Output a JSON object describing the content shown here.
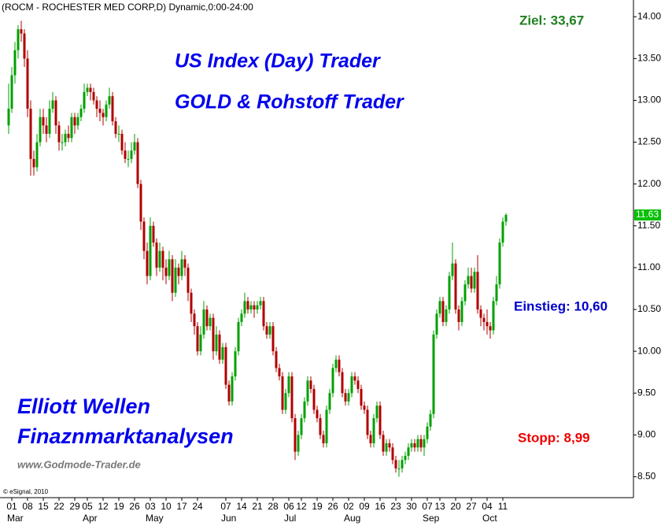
{
  "chart_data": {
    "type": "candlestick",
    "title": "(ROCM - ROCHESTER MED CORP,D) Dynamic,0:00-24:00",
    "copyright": "© eSignal, 2010",
    "annotations": {
      "target": "Ziel: 33,67",
      "headline1": "US Index (Day) Trader",
      "headline2": "GOLD & Rohstoff Trader",
      "entry": "Einstieg: 10,60",
      "stop": "Stopp: 8,99",
      "brand1": "Elliott Wellen",
      "brand2": "Finaznmarktanalysen",
      "url": "www.Godmode-Trader.de"
    },
    "up_color": "#00a000",
    "down_color": "#b00000",
    "last_price": {
      "value": 11.63,
      "label": "11.63"
    },
    "last_color": "#00c000",
    "ylim": [
      8.25,
      14.2
    ],
    "yticks": [
      {
        "value": 8.5,
        "label": "8.50"
      },
      {
        "value": 9,
        "label": "9.00"
      },
      {
        "value": 9.5,
        "label": "9.50"
      },
      {
        "value": 10,
        "label": "10.00"
      },
      {
        "value": 10.5,
        "label": "10.50"
      },
      {
        "value": 11,
        "label": "11.00"
      },
      {
        "value": 11.5,
        "label": "11.50"
      },
      {
        "value": 12,
        "label": "12.00"
      },
      {
        "value": 12.5,
        "label": "12.50"
      },
      {
        "value": 13,
        "label": "13.00"
      },
      {
        "value": 13.5,
        "label": "13.50"
      },
      {
        "value": 14,
        "label": "14.00"
      }
    ],
    "months": [
      "Mar",
      "Apr",
      "May",
      "Jun",
      "Jul",
      "Aug",
      "Sep",
      "Oct"
    ],
    "categories": [
      null,
      "01",
      null,
      null,
      null,
      null,
      "08",
      null,
      null,
      null,
      null,
      "15",
      null,
      null,
      null,
      null,
      "22",
      null,
      null,
      null,
      null,
      "29",
      null,
      null,
      null,
      "05",
      null,
      null,
      null,
      null,
      "12",
      null,
      null,
      null,
      null,
      "19",
      null,
      null,
      null,
      null,
      "26",
      null,
      null,
      null,
      null,
      "03",
      null,
      null,
      null,
      null,
      "10",
      null,
      null,
      null,
      null,
      "17",
      null,
      null,
      null,
      null,
      "24",
      null,
      null,
      null,
      null,
      null,
      null,
      null,
      null,
      "07",
      null,
      null,
      null,
      null,
      "14",
      null,
      null,
      null,
      null,
      "21",
      null,
      null,
      null,
      null,
      "28",
      null,
      null,
      null,
      null,
      "06",
      null,
      null,
      null,
      "12",
      null,
      null,
      null,
      null,
      "19",
      null,
      null,
      null,
      null,
      "26",
      null,
      null,
      null,
      null,
      "02",
      null,
      null,
      null,
      null,
      "09",
      null,
      null,
      null,
      null,
      "16",
      null,
      null,
      null,
      null,
      "23",
      null,
      null,
      null,
      null,
      "30",
      null,
      null,
      null,
      null,
      "07",
      null,
      null,
      null,
      "13",
      null,
      null,
      null,
      null,
      "20",
      null,
      null,
      null,
      null,
      "27",
      null,
      null,
      null,
      null,
      "04",
      null,
      null,
      null,
      null,
      "11",
      null
    ],
    "ohlc": [
      [
        12.7,
        13.2,
        12.6,
        12.9
      ],
      [
        12.9,
        13.4,
        12.85,
        13.3
      ],
      [
        13.3,
        13.7,
        13.2,
        13.6
      ],
      [
        13.6,
        13.9,
        13.5,
        13.85
      ],
      [
        13.85,
        13.95,
        13.7,
        13.8
      ],
      [
        13.8,
        13.85,
        13.4,
        13.5
      ],
      [
        13.5,
        13.6,
        12.8,
        12.9
      ],
      [
        12.9,
        13.0,
        12.1,
        12.3
      ],
      [
        12.3,
        12.4,
        12.1,
        12.2
      ],
      [
        12.2,
        12.6,
        12.15,
        12.5
      ],
      [
        12.5,
        12.9,
        12.45,
        12.8
      ],
      [
        12.8,
        12.9,
        12.6,
        12.7
      ],
      [
        12.7,
        12.8,
        12.5,
        12.6
      ],
      [
        12.6,
        13.0,
        12.55,
        12.9
      ],
      [
        12.9,
        13.1,
        12.85,
        13.0
      ],
      [
        13.0,
        13.05,
        12.6,
        12.7
      ],
      [
        12.7,
        12.75,
        12.4,
        12.5
      ],
      [
        12.5,
        12.6,
        12.4,
        12.5
      ],
      [
        12.5,
        12.65,
        12.45,
        12.6
      ],
      [
        12.6,
        12.7,
        12.5,
        12.55
      ],
      [
        12.55,
        12.85,
        12.5,
        12.8
      ],
      [
        12.8,
        12.85,
        12.6,
        12.7
      ],
      [
        12.7,
        12.85,
        12.65,
        12.8
      ],
      [
        12.8,
        12.95,
        12.75,
        12.9
      ],
      [
        12.9,
        13.2,
        12.85,
        13.1
      ],
      [
        13.1,
        13.2,
        13.05,
        13.15
      ],
      [
        13.15,
        13.2,
        13.0,
        13.1
      ],
      [
        13.1,
        13.15,
        12.95,
        13.0
      ],
      [
        13.0,
        13.05,
        12.8,
        12.9
      ],
      [
        12.9,
        13.0,
        12.75,
        12.85
      ],
      [
        12.85,
        12.9,
        12.7,
        12.8
      ],
      [
        12.8,
        13.0,
        12.75,
        12.95
      ],
      [
        12.95,
        13.15,
        12.9,
        13.05
      ],
      [
        13.05,
        13.1,
        12.7,
        12.75
      ],
      [
        12.75,
        12.8,
        12.55,
        12.6
      ],
      [
        12.6,
        12.7,
        12.5,
        12.6
      ],
      [
        12.6,
        12.65,
        12.35,
        12.4
      ],
      [
        12.4,
        12.5,
        12.25,
        12.3
      ],
      [
        12.3,
        12.4,
        12.2,
        12.3
      ],
      [
        12.3,
        12.5,
        12.25,
        12.4
      ],
      [
        12.4,
        12.6,
        12.35,
        12.5
      ],
      [
        12.5,
        12.55,
        11.95,
        12.0
      ],
      [
        12.0,
        12.05,
        11.45,
        11.55
      ],
      [
        11.55,
        11.6,
        11.1,
        11.2
      ],
      [
        11.2,
        11.3,
        10.8,
        10.9
      ],
      [
        10.9,
        11.6,
        10.85,
        11.5
      ],
      [
        11.5,
        11.55,
        11.25,
        11.3
      ],
      [
        11.3,
        11.35,
        10.9,
        11.0
      ],
      [
        11.0,
        11.3,
        10.95,
        11.2
      ],
      [
        11.2,
        11.25,
        10.85,
        11.0
      ],
      [
        11.0,
        11.1,
        10.8,
        10.9
      ],
      [
        10.9,
        11.2,
        10.85,
        11.1
      ],
      [
        11.1,
        11.15,
        10.6,
        10.7
      ],
      [
        10.7,
        11.1,
        10.65,
        11.0
      ],
      [
        11.0,
        11.05,
        10.8,
        10.9
      ],
      [
        10.9,
        11.2,
        10.85,
        11.1
      ],
      [
        11.1,
        11.15,
        10.9,
        11.0
      ],
      [
        11.0,
        11.05,
        10.6,
        10.7
      ],
      [
        10.7,
        10.75,
        10.35,
        10.45
      ],
      [
        10.45,
        10.5,
        10.2,
        10.3
      ],
      [
        10.3,
        10.35,
        9.95,
        10.0
      ],
      [
        10.0,
        10.3,
        9.95,
        10.2
      ],
      [
        10.2,
        10.6,
        10.15,
        10.5
      ],
      [
        10.5,
        10.55,
        10.25,
        10.3
      ],
      [
        10.3,
        10.45,
        10.25,
        10.4
      ],
      [
        10.4,
        10.45,
        9.9,
        10.0
      ],
      [
        10.0,
        10.3,
        9.95,
        10.2
      ],
      [
        10.2,
        10.25,
        9.85,
        9.9
      ],
      [
        9.9,
        10.1,
        9.85,
        10.05
      ],
      [
        10.05,
        10.1,
        9.55,
        9.6
      ],
      [
        9.6,
        9.65,
        9.35,
        9.4
      ],
      [
        9.4,
        9.75,
        9.35,
        9.7
      ],
      [
        9.7,
        10.05,
        9.65,
        10.0
      ],
      [
        10.0,
        10.4,
        9.95,
        10.35
      ],
      [
        10.35,
        10.5,
        10.3,
        10.45
      ],
      [
        10.45,
        10.7,
        10.4,
        10.6
      ],
      [
        10.6,
        10.65,
        10.45,
        10.5
      ],
      [
        10.5,
        10.6,
        10.45,
        10.55
      ],
      [
        10.55,
        10.6,
        10.4,
        10.5
      ],
      [
        10.5,
        10.6,
        10.45,
        10.55
      ],
      [
        10.55,
        10.65,
        10.5,
        10.6
      ],
      [
        10.6,
        10.65,
        10.25,
        10.3
      ],
      [
        10.3,
        10.35,
        10.15,
        10.2
      ],
      [
        10.2,
        10.35,
        10.15,
        10.3
      ],
      [
        10.3,
        10.35,
        9.95,
        10.0
      ],
      [
        10.0,
        10.05,
        9.75,
        9.8
      ],
      [
        9.8,
        9.85,
        9.65,
        9.7
      ],
      [
        9.7,
        9.75,
        9.25,
        9.3
      ],
      [
        9.3,
        9.55,
        9.25,
        9.5
      ],
      [
        9.5,
        9.75,
        9.45,
        9.7
      ],
      [
        9.7,
        9.75,
        9.15,
        9.2
      ],
      [
        9.2,
        9.25,
        8.7,
        8.8
      ],
      [
        8.8,
        9.05,
        8.75,
        9.0
      ],
      [
        9.0,
        9.25,
        8.95,
        9.2
      ],
      [
        9.2,
        9.45,
        9.15,
        9.4
      ],
      [
        9.4,
        9.7,
        9.35,
        9.65
      ],
      [
        9.65,
        9.7,
        9.5,
        9.55
      ],
      [
        9.55,
        9.6,
        9.25,
        9.3
      ],
      [
        9.3,
        9.35,
        9.15,
        9.2
      ],
      [
        9.2,
        9.25,
        8.95,
        9.0
      ],
      [
        9.0,
        9.05,
        8.85,
        8.9
      ],
      [
        8.9,
        9.35,
        8.85,
        9.3
      ],
      [
        9.3,
        9.55,
        9.25,
        9.5
      ],
      [
        9.5,
        9.85,
        9.45,
        9.8
      ],
      [
        9.8,
        9.95,
        9.75,
        9.9
      ],
      [
        9.9,
        9.95,
        9.7,
        9.75
      ],
      [
        9.75,
        9.8,
        9.45,
        9.5
      ],
      [
        9.5,
        9.55,
        9.35,
        9.4
      ],
      [
        9.4,
        9.55,
        9.35,
        9.5
      ],
      [
        9.5,
        9.75,
        9.45,
        9.7
      ],
      [
        9.7,
        9.75,
        9.6,
        9.65
      ],
      [
        9.65,
        9.7,
        9.5,
        9.55
      ],
      [
        9.55,
        9.6,
        9.3,
        9.35
      ],
      [
        9.35,
        9.4,
        9.25,
        9.3
      ],
      [
        9.3,
        9.35,
        8.95,
        9.0
      ],
      [
        9.0,
        9.05,
        8.85,
        8.9
      ],
      [
        8.9,
        9.25,
        8.85,
        9.2
      ],
      [
        9.2,
        9.4,
        9.15,
        9.35
      ],
      [
        9.35,
        9.4,
        8.95,
        9.0
      ],
      [
        9.0,
        9.05,
        8.75,
        8.8
      ],
      [
        8.8,
        8.95,
        8.75,
        8.9
      ],
      [
        8.9,
        8.95,
        8.8,
        8.85
      ],
      [
        8.85,
        8.9,
        8.65,
        8.7
      ],
      [
        8.7,
        8.75,
        8.55,
        8.6
      ],
      [
        8.6,
        8.7,
        8.5,
        8.6
      ],
      [
        8.6,
        8.75,
        8.55,
        8.7
      ],
      [
        8.7,
        8.8,
        8.65,
        8.75
      ],
      [
        8.75,
        8.9,
        8.7,
        8.85
      ],
      [
        8.85,
        8.95,
        8.8,
        8.9
      ],
      [
        8.9,
        8.95,
        8.8,
        8.85
      ],
      [
        8.85,
        9.0,
        8.8,
        8.95
      ],
      [
        8.95,
        9.0,
        8.8,
        8.85
      ],
      [
        8.85,
        9.0,
        8.75,
        8.95
      ],
      [
        8.95,
        9.15,
        8.9,
        9.1
      ],
      [
        9.1,
        9.3,
        9.05,
        9.25
      ],
      [
        9.25,
        10.25,
        9.2,
        10.2
      ],
      [
        10.2,
        10.5,
        10.15,
        10.45
      ],
      [
        10.45,
        10.65,
        10.4,
        10.6
      ],
      [
        10.6,
        10.65,
        10.3,
        10.35
      ],
      [
        10.35,
        10.55,
        10.3,
        10.5
      ],
      [
        10.5,
        10.95,
        10.45,
        10.9
      ],
      [
        10.9,
        11.3,
        10.85,
        11.05
      ],
      [
        11.05,
        11.1,
        10.45,
        10.5
      ],
      [
        10.5,
        10.55,
        10.25,
        10.35
      ],
      [
        10.35,
        10.65,
        10.3,
        10.6
      ],
      [
        10.6,
        10.85,
        10.55,
        10.8
      ],
      [
        10.8,
        11.0,
        10.75,
        10.9
      ],
      [
        10.9,
        11.0,
        10.7,
        10.75
      ],
      [
        10.75,
        11.0,
        10.7,
        10.95
      ],
      [
        10.95,
        11.15,
        10.45,
        10.5
      ],
      [
        10.5,
        10.55,
        10.3,
        10.4
      ],
      [
        10.4,
        10.45,
        10.25,
        10.35
      ],
      [
        10.35,
        10.5,
        10.2,
        10.3
      ],
      [
        10.3,
        10.35,
        10.15,
        10.25
      ],
      [
        10.25,
        10.65,
        10.2,
        10.6
      ],
      [
        10.6,
        10.9,
        10.55,
        10.8
      ],
      [
        10.8,
        11.35,
        10.75,
        11.3
      ],
      [
        11.3,
        11.6,
        11.25,
        11.55
      ],
      [
        11.55,
        11.65,
        11.5,
        11.63
      ]
    ]
  }
}
